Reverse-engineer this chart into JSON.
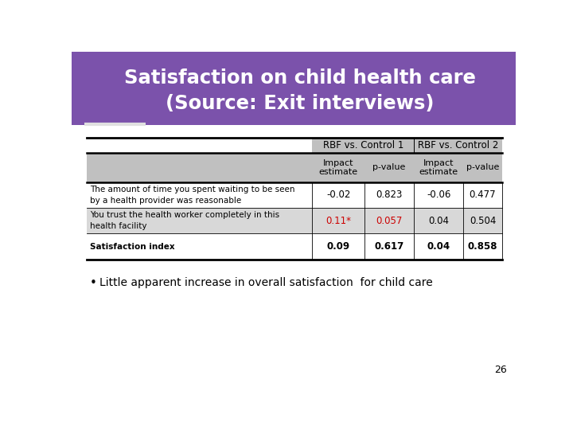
{
  "title_line1": "Satisfaction on child health care",
  "title_line2": "(Source: Exit interviews)",
  "title_bg_color": "#7B52AB",
  "title_text_color": "#FFFFFF",
  "underline_color": "#C8C8C8",
  "header1": "RBF vs. Control 1",
  "header2": "RBF vs. Control 2",
  "col_headers": [
    "Impact\nestimate",
    "p-value",
    "Impact\nestimate",
    "p-value"
  ],
  "rows": [
    {
      "label_line1": "The amount of time you spent waiting to be seen",
      "label_line2": "by a health provider was reasonable",
      "values": [
        "-0.02",
        "0.823",
        "-0.06",
        "0.477"
      ],
      "bold": false,
      "red": [
        false,
        false,
        false,
        false
      ],
      "bg": "#FFFFFF"
    },
    {
      "label_line1": "You trust the health worker completely in this",
      "label_line2": "health facility",
      "values": [
        "0.11*",
        "0.057",
        "0.04",
        "0.504"
      ],
      "bold": false,
      "red": [
        true,
        true,
        false,
        false
      ],
      "bg": "#D8D8D8"
    },
    {
      "label_line1": "Satisfaction index",
      "label_line2": "",
      "values": [
        "0.09",
        "0.617",
        "0.04",
        "0.858"
      ],
      "bold": true,
      "red": [
        false,
        false,
        false,
        false
      ],
      "bg": "#FFFFFF"
    }
  ],
  "bullet_text": "Little apparent increase in overall satisfaction  for child care",
  "page_number": "26",
  "header_bg": "#C0C0C0",
  "font_family": "DejaVu Sans"
}
